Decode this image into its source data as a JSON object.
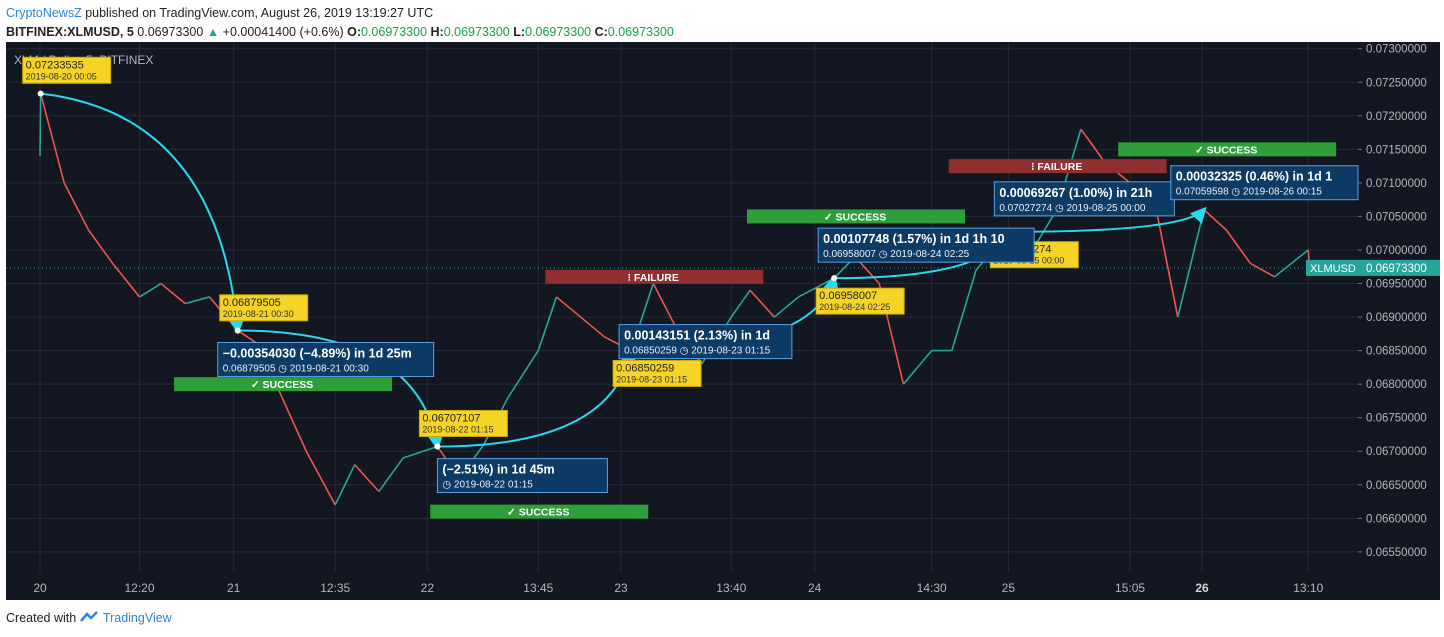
{
  "header": {
    "brand": "CryptoNewsZ",
    "published": "published on TradingView.com, August 26, 2019 13:19:27 UTC",
    "symbol": "BITFINEX:XLMUSD, 5",
    "price": "0.06973300",
    "up_arrow": "▲",
    "change": "+0.00041400 (+0.6%)",
    "o_label": "O:",
    "o_value": "0.06973300",
    "h_label": "H:",
    "h_value": "0.06973300",
    "l_label": "L:",
    "l_value": "0.06973300",
    "c_label": "C:",
    "c_value": "0.06973300"
  },
  "footer": {
    "created": "Created with",
    "brand": "TradingView",
    "logo_icon": "tradingview-logo-icon"
  },
  "colors": {
    "up": "#26a69a",
    "down": "#ef5350",
    "arrow": "#29d9f0",
    "bg": "#131722",
    "label": "#f5d327",
    "box": "#0d3b66",
    "success": "#2e9e3a",
    "failure": "#8f2f2f"
  },
  "chart_data": {
    "type": "line",
    "symbol_label": "XLM / Dollar, 5, BITFINEX",
    "ylim": [
      0.0652,
      0.0731
    ],
    "y_ticks": [
      "0.07300000",
      "0.07250000",
      "0.07200000",
      "0.07150000",
      "0.07100000",
      "0.07050000",
      "0.07000000",
      "0.06950000",
      "0.06900000",
      "0.06850000",
      "0.06800000",
      "0.06750000",
      "0.06700000",
      "0.06650000",
      "0.06600000",
      "0.06550000"
    ],
    "x_ticks": [
      "20",
      "12:20",
      "21",
      "12:35",
      "22",
      "13:45",
      "23",
      "13:40",
      "24",
      "14:30",
      "25",
      "15:05",
      "26",
      "13:10"
    ],
    "last_price_label": "XLMUSD",
    "last_price": "0.06973300",
    "x": [
      "2019-08-20 00:00",
      "2019-08-20 00:05",
      "2019-08-20 03:00",
      "2019-08-20 06:00",
      "2019-08-20 09:00",
      "2019-08-20 12:20",
      "2019-08-20 15:00",
      "2019-08-20 18:00",
      "2019-08-20 21:00",
      "2019-08-21 00:30",
      "2019-08-21 03:00",
      "2019-08-21 06:00",
      "2019-08-21 09:00",
      "2019-08-21 12:35",
      "2019-08-21 15:00",
      "2019-08-21 18:00",
      "2019-08-21 21:00",
      "2019-08-22 01:15",
      "2019-08-22 04:00",
      "2019-08-22 07:00",
      "2019-08-22 10:00",
      "2019-08-22 13:45",
      "2019-08-22 16:00",
      "2019-08-22 19:00",
      "2019-08-22 22:00",
      "2019-08-23 01:15",
      "2019-08-23 04:00",
      "2019-08-23 07:00",
      "2019-08-23 10:00",
      "2019-08-23 13:40",
      "2019-08-23 16:00",
      "2019-08-23 19:00",
      "2019-08-23 22:00",
      "2019-08-24 02:25",
      "2019-08-24 05:00",
      "2019-08-24 08:00",
      "2019-08-24 11:00",
      "2019-08-24 14:30",
      "2019-08-24 17:00",
      "2019-08-24 20:00",
      "2019-08-25 00:00",
      "2019-08-25 03:00",
      "2019-08-25 06:00",
      "2019-08-25 09:00",
      "2019-08-25 12:00",
      "2019-08-25 15:05",
      "2019-08-25 18:00",
      "2019-08-25 21:00",
      "2019-08-26 00:15",
      "2019-08-26 03:00",
      "2019-08-26 06:00",
      "2019-08-26 09:00",
      "2019-08-26 13:10",
      "2019-08-26 13:19"
    ],
    "y": [
      0.0714,
      0.07233,
      0.071,
      0.0703,
      0.0698,
      0.0693,
      0.0695,
      0.0692,
      0.0693,
      0.0688,
      0.0686,
      0.0678,
      0.067,
      0.0662,
      0.0668,
      0.0664,
      0.0669,
      0.06707,
      0.0666,
      0.0671,
      0.0678,
      0.0685,
      0.0693,
      0.069,
      0.0687,
      0.0685,
      0.0695,
      0.0688,
      0.0683,
      0.069,
      0.0694,
      0.069,
      0.0693,
      0.06958,
      0.0699,
      0.0695,
      0.068,
      0.0685,
      0.0685,
      0.0697,
      0.07027,
      0.07,
      0.0706,
      0.0718,
      0.0713,
      0.071,
      0.0708,
      0.069,
      0.0706,
      0.0703,
      0.0698,
      0.0696,
      0.07,
      0.06973
    ],
    "price_labels": [
      {
        "x": "2019-08-20 00:05",
        "value": "0.07233535",
        "time": "2019-08-20 00:05"
      },
      {
        "x": "2019-08-21 00:30",
        "value": "0.06879505",
        "time": "2019-08-21 00:30"
      },
      {
        "x": "2019-08-22 01:15",
        "value": "0.06707107",
        "time": "2019-08-22 01:15"
      },
      {
        "x": "2019-08-23 01:15",
        "value": "0.06850259",
        "time": "2019-08-23 01:15"
      },
      {
        "x": "2019-08-24 02:25",
        "value": "0.06958007",
        "time": "2019-08-24 02:25"
      },
      {
        "x": "2019-08-25 00:00",
        "value": "0.07027274",
        "time": "2019-08-25 00:00"
      }
    ],
    "measurements": [
      {
        "x": "2019-08-21 00:30",
        "y": 0.0688,
        "line1": "−0.00354030 (−4.89%) in 1d 25m",
        "line2": "0.06879505",
        "time": "2019-08-21 00:30"
      },
      {
        "x": "2019-08-22 01:15",
        "y": 0.06707,
        "line1": "(−2.51%) in 1d 45m",
        "line2": "",
        "time": "2019-08-22 01:15"
      },
      {
        "x": "2019-08-23 01:15",
        "y": 0.0685,
        "line1": "0.00143151 (2.13%) in 1d",
        "line2": "0.06850259",
        "time": "2019-08-23 01:15"
      },
      {
        "x": "2019-08-24 02:25",
        "y": 0.06958,
        "line1": "0.00107748 (1.57%) in 1d 1h 10",
        "line2": "0.06958007",
        "time": "2019-08-24 02:25"
      },
      {
        "x": "2019-08-25 00:00",
        "y": 0.07027,
        "line1": "0.00069267 (1.00%) in 21h",
        "line2": "0.07027274",
        "time": "2019-08-25 00:00"
      },
      {
        "x": "2019-08-26 00:15",
        "y": 0.0706,
        "line1": "0.00032325 (0.46%) in 1d 1",
        "line2": "0.07059598",
        "time": "2019-08-26 00:15"
      }
    ],
    "status_badges": [
      {
        "text": "✓ SUCCESS",
        "type": "success",
        "x": "2019-08-21 06:00",
        "y": 0.068
      },
      {
        "text": "✓ SUCCESS",
        "type": "success",
        "x": "2019-08-22 13:45",
        "y": 0.0661
      },
      {
        "text": "⁝ FAILURE",
        "type": "failure",
        "x": "2019-08-23 04:00",
        "y": 0.0696
      },
      {
        "text": "✓ SUCCESS",
        "type": "success",
        "x": "2019-08-24 05:00",
        "y": 0.0705
      },
      {
        "text": "⁝ FAILURE",
        "type": "failure",
        "x": "2019-08-25 06:00",
        "y": 0.07125
      },
      {
        "text": "✓ SUCCESS",
        "type": "success",
        "x": "2019-08-26 03:00",
        "y": 0.0715
      }
    ]
  }
}
